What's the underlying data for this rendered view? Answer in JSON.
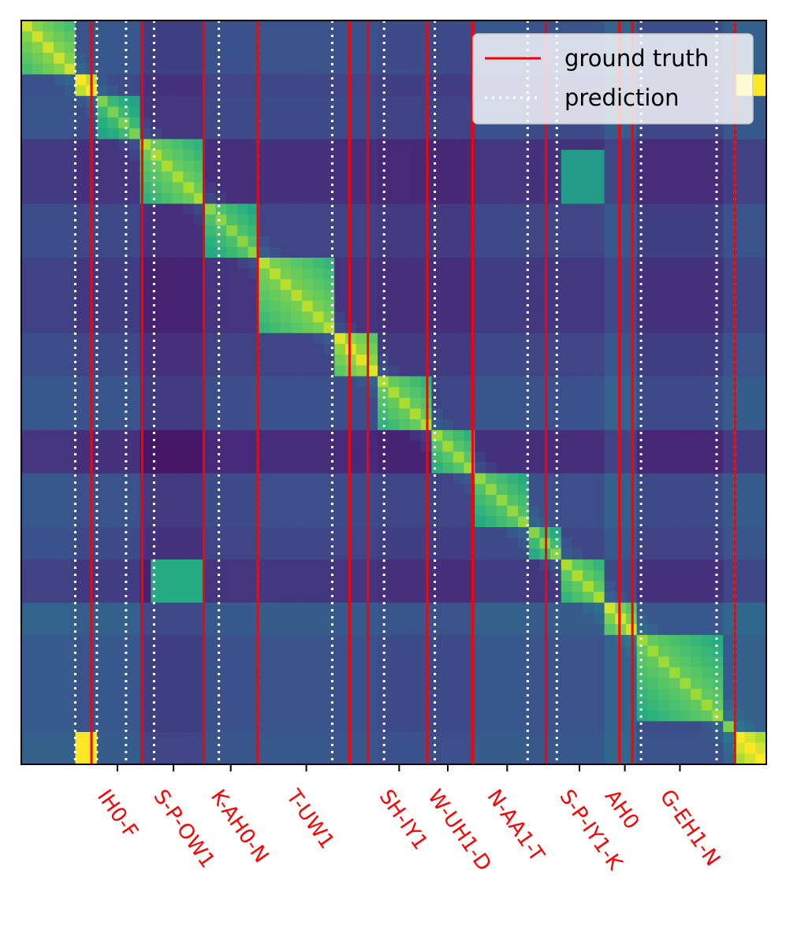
{
  "chart_data": {
    "type": "heatmap",
    "description_of_axes": "",
    "n_frames": 69,
    "colormap": "viridis",
    "xlim": [
      0,
      69
    ],
    "ylim": [
      0,
      69
    ],
    "diagonal_blocks": [
      {
        "start": 0,
        "end": 5,
        "level": 0.85
      },
      {
        "start": 5,
        "end": 7,
        "level": 1.0
      },
      {
        "start": 7,
        "end": 11,
        "level": 0.72
      },
      {
        "start": 11,
        "end": 17,
        "level": 0.8
      },
      {
        "start": 17,
        "end": 22,
        "level": 0.75
      },
      {
        "start": 22,
        "end": 29,
        "level": 0.82
      },
      {
        "start": 29,
        "end": 33,
        "level": 0.88
      },
      {
        "start": 33,
        "end": 38,
        "level": 0.8
      },
      {
        "start": 38,
        "end": 42,
        "level": 0.78
      },
      {
        "start": 42,
        "end": 47,
        "level": 0.76
      },
      {
        "start": 47,
        "end": 50,
        "level": 0.74
      },
      {
        "start": 50,
        "end": 54,
        "level": 0.8
      },
      {
        "start": 54,
        "end": 57,
        "level": 0.86
      },
      {
        "start": 57,
        "end": 65,
        "level": 0.78
      },
      {
        "start": 65,
        "end": 66,
        "level": 0.72
      },
      {
        "start": 66,
        "end": 69,
        "level": 1.0
      }
    ],
    "off_diagonal_blocks": [
      {
        "rows": [
          12,
          17
        ],
        "cols": [
          50,
          54
        ],
        "level": 0.55
      },
      {
        "rows": [
          50,
          54
        ],
        "cols": [
          12,
          17
        ],
        "level": 0.62
      },
      {
        "rows": [
          66,
          69
        ],
        "cols": [
          5,
          7
        ],
        "level": 1.0
      },
      {
        "rows": [
          5,
          7
        ],
        "cols": [
          66,
          69
        ],
        "level": 1.0
      }
    ],
    "ground_truth_boundaries": [
      6.5,
      11.2,
      16.9,
      21.9,
      30.4,
      32.1,
      37.6,
      41.8,
      48.6,
      55.4,
      56.6,
      66.1
    ],
    "prediction_boundaries": [
      5.0,
      7.0,
      9.7,
      12.3,
      18.3,
      21.9,
      28.8,
      33.6,
      38.3,
      41.8,
      46.9,
      49.6,
      57.4,
      64.4,
      66.1
    ],
    "tick_labels": [
      {
        "position": 8.9,
        "label": "IH0-F"
      },
      {
        "position": 14.1,
        "label": "S-P-OW1"
      },
      {
        "position": 19.4,
        "label": "K-AH0-N"
      },
      {
        "position": 26.4,
        "label": "T-UW1"
      },
      {
        "position": 35.0,
        "label": "SH-IY1"
      },
      {
        "position": 39.5,
        "label": "W-UH1-D"
      },
      {
        "position": 45.0,
        "label": "N-AA1-T"
      },
      {
        "position": 51.7,
        "label": "S-P-IY1-K"
      },
      {
        "position": 55.9,
        "label": "AH0"
      },
      {
        "position": 61.0,
        "label": "G-EH1-N"
      }
    ],
    "legend": {
      "placement": "top-right",
      "entries": [
        {
          "label": "ground truth",
          "style": "solid",
          "color": "#ff0000"
        },
        {
          "label": "prediction",
          "style": "dotted",
          "color": "#ffffff"
        }
      ]
    },
    "colors": {
      "ground_truth": "#ff0000",
      "prediction": "#ffffff",
      "tick_label": "#ff0000"
    }
  }
}
